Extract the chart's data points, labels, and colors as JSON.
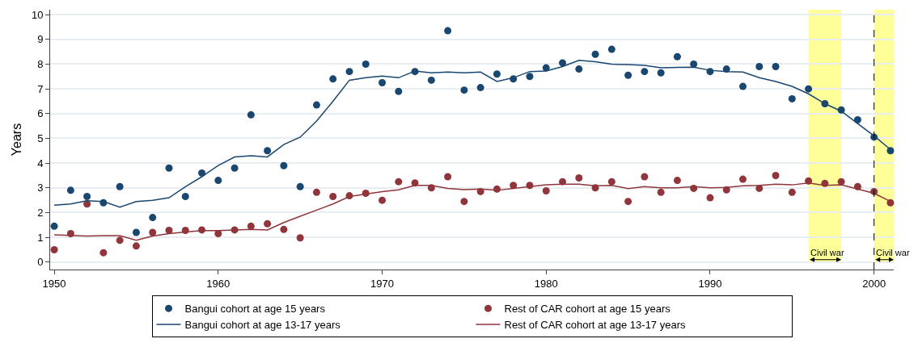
{
  "chart_data": {
    "type": "scatter",
    "ylabel": "Years",
    "x": [
      1950,
      1951,
      1952,
      1953,
      1954,
      1955,
      1956,
      1957,
      1958,
      1959,
      1960,
      1961,
      1962,
      1963,
      1964,
      1965,
      1966,
      1967,
      1968,
      1969,
      1970,
      1971,
      1972,
      1973,
      1974,
      1975,
      1976,
      1977,
      1978,
      1979,
      1980,
      1981,
      1982,
      1983,
      1984,
      1985,
      1986,
      1987,
      1988,
      1989,
      1990,
      1991,
      1992,
      1993,
      1994,
      1995,
      1996,
      1997,
      1998,
      1999,
      2000,
      2001
    ],
    "series": [
      {
        "name": "Bangui cohort at age 15 years",
        "marker": "circle",
        "color": "#1a476f",
        "values": [
          1.45,
          2.9,
          2.65,
          2.4,
          3.05,
          1.2,
          1.8,
          3.8,
          2.65,
          3.6,
          3.3,
          3.8,
          5.95,
          4.5,
          3.9,
          3.05,
          6.35,
          7.4,
          7.7,
          8.0,
          7.25,
          6.9,
          7.7,
          7.35,
          9.35,
          6.95,
          7.05,
          7.6,
          7.4,
          7.5,
          7.85,
          8.05,
          7.8,
          8.4,
          8.6,
          7.55,
          7.7,
          7.65,
          8.3,
          8.0,
          7.7,
          7.8,
          7.1,
          7.9,
          7.9,
          6.6,
          7.0,
          6.4,
          6.15,
          5.75,
          5.05,
          4.5
        ]
      },
      {
        "name": "Rest of CAR cohort at age 15 years",
        "marker": "circle",
        "color": "#90353b",
        "values": [
          0.5,
          1.15,
          2.35,
          0.38,
          0.88,
          0.65,
          1.2,
          1.28,
          1.28,
          1.3,
          1.15,
          1.3,
          1.45,
          1.55,
          1.32,
          0.98,
          2.82,
          2.65,
          2.68,
          2.78,
          2.5,
          3.25,
          3.2,
          3.0,
          3.45,
          2.45,
          2.85,
          2.95,
          3.1,
          3.1,
          2.88,
          3.25,
          3.4,
          3.0,
          3.25,
          2.45,
          3.45,
          2.82,
          3.3,
          2.98,
          2.6,
          2.92,
          3.35,
          2.98,
          3.5,
          2.82,
          3.28,
          3.18,
          3.25,
          3.05,
          2.85,
          2.4
        ]
      },
      {
        "name": "Bangui cohort at age 13-17 years",
        "type": "line",
        "marker": "none",
        "line_style": "solid",
        "color": "#1a476f",
        "values": [
          2.3,
          2.35,
          2.48,
          2.45,
          2.22,
          2.45,
          2.5,
          2.6,
          3.05,
          3.45,
          3.9,
          4.25,
          4.3,
          4.25,
          4.75,
          5.05,
          5.7,
          6.5,
          7.35,
          7.45,
          7.52,
          7.45,
          7.72,
          7.65,
          7.68,
          7.65,
          7.68,
          7.3,
          7.45,
          7.7,
          7.72,
          7.9,
          8.15,
          8.1,
          8.0,
          7.98,
          7.95,
          7.85,
          7.87,
          7.88,
          7.75,
          7.7,
          7.68,
          7.45,
          7.3,
          7.1,
          6.8,
          6.4,
          6.1,
          5.6,
          5.1,
          4.55
        ]
      },
      {
        "name": "Rest of CAR cohort at age 13-17 years",
        "type": "line",
        "marker": "none",
        "line_style": "solid",
        "color": "#90353b",
        "values": [
          1.1,
          1.08,
          1.05,
          1.07,
          1.07,
          0.88,
          1.05,
          1.15,
          1.22,
          1.27,
          1.27,
          1.3,
          1.32,
          1.3,
          1.6,
          1.85,
          2.1,
          2.35,
          2.65,
          2.75,
          2.85,
          2.92,
          3.1,
          3.1,
          2.98,
          2.93,
          2.95,
          2.9,
          2.98,
          3.05,
          3.12,
          3.15,
          3.15,
          3.08,
          3.1,
          2.97,
          3.05,
          3.0,
          3.0,
          3.05,
          3.0,
          3.02,
          3.08,
          3.1,
          3.15,
          3.12,
          3.2,
          3.1,
          3.12,
          2.95,
          2.78,
          2.45
        ]
      }
    ],
    "xlim": [
      1949.75,
      2001.2
    ],
    "xticks": [
      1950,
      1960,
      1970,
      1980,
      1990,
      2000
    ],
    "ylim": [
      -0.3,
      10.2
    ],
    "yticks": [
      0,
      1,
      2,
      3,
      4,
      5,
      6,
      7,
      8,
      9,
      10
    ],
    "grid": "y",
    "legend": "bottom",
    "bands": [
      {
        "axis": "x",
        "from": 1996,
        "to": 1998,
        "label": "Civil war",
        "color": "#ffff99"
      },
      {
        "axis": "x",
        "from": 2000,
        "to": 2001.2,
        "label": "Civil war",
        "color": "#ffff99"
      }
    ],
    "ref_lines": [
      {
        "axis": "x",
        "value": 2000,
        "line_style": "dashed",
        "color": "#000000"
      }
    ]
  }
}
